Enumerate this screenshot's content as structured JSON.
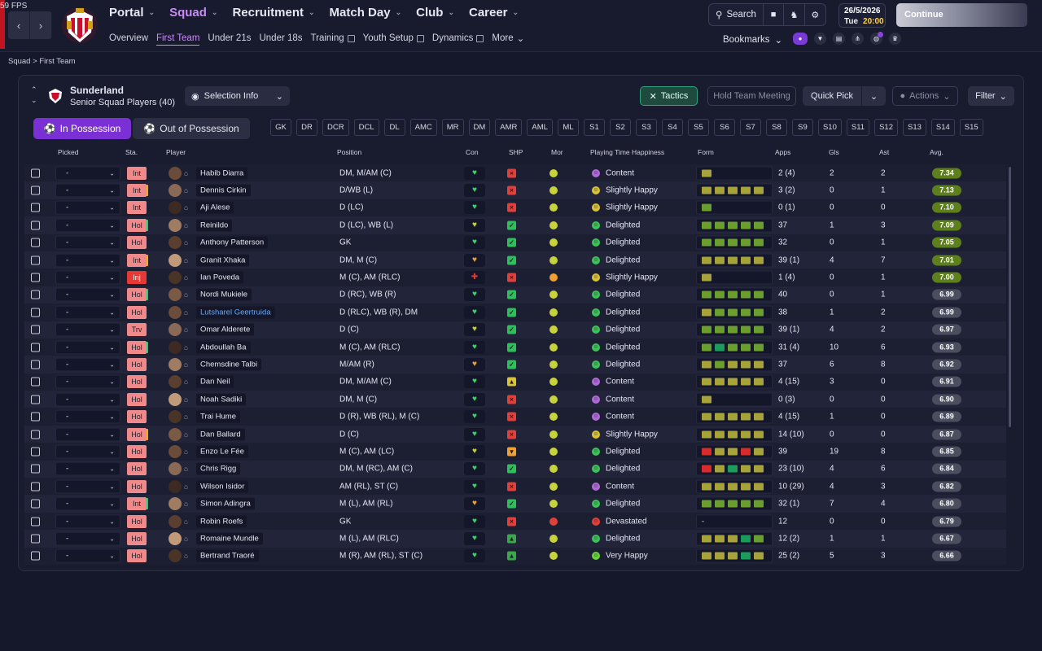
{
  "fps": "59 FPS",
  "nav": {
    "main": [
      {
        "label": "Portal",
        "active": false
      },
      {
        "label": "Squad",
        "active": true
      },
      {
        "label": "Recruitment",
        "active": false
      },
      {
        "label": "Match Day",
        "active": false
      },
      {
        "label": "Club",
        "active": false
      },
      {
        "label": "Career",
        "active": false
      }
    ],
    "sub": [
      {
        "label": "Overview",
        "active": false,
        "ext": false
      },
      {
        "label": "First Team",
        "active": true,
        "ext": false
      },
      {
        "label": "Under 21s",
        "active": false,
        "ext": false
      },
      {
        "label": "Under 18s",
        "active": false,
        "ext": false
      },
      {
        "label": "Training",
        "active": false,
        "ext": true
      },
      {
        "label": "Youth Setup",
        "active": false,
        "ext": true
      },
      {
        "label": "Dynamics",
        "active": false,
        "ext": true
      },
      {
        "label": "More",
        "active": false,
        "ext": false
      }
    ]
  },
  "tools": {
    "search": "Search"
  },
  "date": {
    "date": "26/5/2026",
    "day": "Tue",
    "time": "20:00"
  },
  "continue": "Continue",
  "bookmarks": "Bookmarks",
  "breadcrumb": {
    "parent": "Squad",
    "current": "First Team"
  },
  "team": {
    "name": "Sunderland",
    "subtitle": "Senior Squad Players (40)"
  },
  "buttons": {
    "selection_info": "Selection Info",
    "tactics": "Tactics",
    "hold_meeting": "Hold Team Meeting",
    "quick_pick": "Quick Pick",
    "actions": "Actions",
    "filter": "Filter",
    "in_possession": "In Possession",
    "out_possession": "Out of Possession"
  },
  "positions": [
    "GK",
    "DR",
    "DCR",
    "DCL",
    "DL",
    "AMC",
    "MR",
    "DM",
    "AMR",
    "AML",
    "ML",
    "S1",
    "S2",
    "S3",
    "S4",
    "S5",
    "S6",
    "S7",
    "S8",
    "S9",
    "S10",
    "S11",
    "S12",
    "S13",
    "S14",
    "S15"
  ],
  "columns": {
    "picked": "Picked",
    "sta": "Sta.",
    "player": "Player",
    "position": "Position",
    "con": "Con",
    "shp": "SHP",
    "mor": "Mor",
    "pth": "Playing Time Happiness",
    "form": "Form",
    "apps": "Apps",
    "gls": "Gls",
    "ast": "Ast",
    "avg": "Avg."
  },
  "colors": {
    "accent": "#7b30d6",
    "int": "#f08a8a",
    "inj": "#e53935",
    "hol": "#f08a8a",
    "trv": "#f08a8a"
  },
  "rows": [
    {
      "picked": "-",
      "sta": "Int",
      "bar": "",
      "name": "Habib Diarra",
      "pos": "DM, M/AM (C)",
      "con": "green",
      "shp": "red",
      "mor": "yellow",
      "pth": "Content",
      "form": [
        "y"
      ],
      "apps": "2 (4)",
      "gls": "2",
      "ast": "2",
      "avg": "7.34",
      "link": false
    },
    {
      "picked": "-",
      "sta": "Int",
      "bar": "orange",
      "name": "Dennis Cirkin",
      "pos": "D/WB (L)",
      "con": "green",
      "shp": "red",
      "mor": "yellow",
      "pth": "Slightly Happy",
      "form": [
        "y",
        "y",
        "y",
        "y",
        "y"
      ],
      "apps": "3 (2)",
      "gls": "0",
      "ast": "1",
      "avg": "7.13",
      "link": false
    },
    {
      "picked": "-",
      "sta": "Int",
      "bar": "",
      "name": "Aji Alese",
      "pos": "D (LC)",
      "con": "green",
      "shp": "red",
      "mor": "yellow",
      "pth": "Slightly Happy",
      "form": [
        "g"
      ],
      "apps": "0 (1)",
      "gls": "0",
      "ast": "0",
      "avg": "7.10",
      "link": false
    },
    {
      "picked": "-",
      "sta": "Hol",
      "bar": "green",
      "name": "Reinildo",
      "pos": "D (LC), WB (L)",
      "con": "yellowg",
      "shp": "green",
      "mor": "yellow",
      "pth": "Delighted",
      "form": [
        "g",
        "g",
        "g",
        "g",
        "g"
      ],
      "apps": "37",
      "gls": "1",
      "ast": "3",
      "avg": "7.09",
      "link": false
    },
    {
      "picked": "-",
      "sta": "Hol",
      "bar": "",
      "name": "Anthony Patterson",
      "pos": "GK",
      "con": "green",
      "shp": "green",
      "mor": "yellow",
      "pth": "Delighted",
      "form": [
        "g",
        "g",
        "g",
        "g",
        "g"
      ],
      "apps": "32",
      "gls": "0",
      "ast": "1",
      "avg": "7.05",
      "link": false
    },
    {
      "picked": "-",
      "sta": "Int",
      "bar": "orange",
      "name": "Granit Xhaka",
      "pos": "DM, M (C)",
      "con": "orangeh",
      "shp": "green",
      "mor": "yellow",
      "pth": "Delighted",
      "form": [
        "y",
        "y",
        "y",
        "y",
        "y"
      ],
      "apps": "39 (1)",
      "gls": "4",
      "ast": "7",
      "avg": "7.01",
      "link": false
    },
    {
      "picked": "-",
      "sta": "Inj",
      "bar": "",
      "name": "Ian Poveda",
      "pos": "M (C), AM (RLC)",
      "con": "redplus",
      "shp": "red",
      "mor": "orange",
      "pth": "Slightly Happy",
      "form": [
        "y"
      ],
      "apps": "1 (4)",
      "gls": "0",
      "ast": "1",
      "avg": "7.00",
      "link": false
    },
    {
      "picked": "-",
      "sta": "Hol",
      "bar": "green",
      "name": "Nordi Mukiele",
      "pos": "D (RC), WB (R)",
      "con": "green",
      "shp": "green",
      "mor": "yellow",
      "pth": "Delighted",
      "form": [
        "g",
        "g",
        "g",
        "g",
        "g"
      ],
      "apps": "40",
      "gls": "0",
      "ast": "1",
      "avg": "6.99",
      "link": false
    },
    {
      "picked": "-",
      "sta": "Hol",
      "bar": "",
      "name": "Lutsharel Geertruida",
      "pos": "D (RLC), WB (R), DM",
      "con": "green",
      "shp": "green",
      "mor": "yellow",
      "pth": "Delighted",
      "form": [
        "y",
        "g",
        "g",
        "g",
        "g"
      ],
      "apps": "38",
      "gls": "1",
      "ast": "2",
      "avg": "6.99",
      "link": true
    },
    {
      "picked": "-",
      "sta": "Trv",
      "bar": "",
      "name": "Omar Alderete",
      "pos": "D (C)",
      "con": "yellowg",
      "shp": "green",
      "mor": "yellow",
      "pth": "Delighted",
      "form": [
        "g",
        "g",
        "g",
        "g",
        "g"
      ],
      "apps": "39 (1)",
      "gls": "4",
      "ast": "2",
      "avg": "6.97",
      "link": false
    },
    {
      "picked": "-",
      "sta": "Hol",
      "bar": "green",
      "name": "Abdoullah Ba",
      "pos": "M (C), AM (RLC)",
      "con": "green",
      "shp": "green",
      "mor": "yellow",
      "pth": "Delighted",
      "form": [
        "g",
        "G",
        "g",
        "g",
        "g"
      ],
      "apps": "31 (4)",
      "gls": "10",
      "ast": "6",
      "avg": "6.93",
      "link": false
    },
    {
      "picked": "-",
      "sta": "Hol",
      "bar": "",
      "name": "Chemsdine Talbi",
      "pos": "M/AM (R)",
      "con": "orangeh",
      "shp": "green",
      "mor": "yellow",
      "pth": "Delighted",
      "form": [
        "y",
        "g",
        "y",
        "y",
        "y"
      ],
      "apps": "37",
      "gls": "6",
      "ast": "8",
      "avg": "6.92",
      "link": false
    },
    {
      "picked": "-",
      "sta": "Hol",
      "bar": "",
      "name": "Dan Neil",
      "pos": "DM, M/AM (C)",
      "con": "green",
      "shp": "yellowup",
      "mor": "yellow",
      "pth": "Content",
      "form": [
        "y",
        "y",
        "y",
        "y",
        "y"
      ],
      "apps": "4 (15)",
      "gls": "3",
      "ast": "0",
      "avg": "6.91",
      "link": false
    },
    {
      "picked": "-",
      "sta": "Hol",
      "bar": "",
      "name": "Noah Sadiki",
      "pos": "DM, M (C)",
      "con": "green",
      "shp": "red",
      "mor": "yellow",
      "pth": "Content",
      "form": [
        "y"
      ],
      "apps": "0 (3)",
      "gls": "0",
      "ast": "0",
      "avg": "6.90",
      "link": false
    },
    {
      "picked": "-",
      "sta": "Hol",
      "bar": "",
      "name": "Trai Hume",
      "pos": "D (R), WB (RL), M (C)",
      "con": "green",
      "shp": "red",
      "mor": "yellow",
      "pth": "Content",
      "form": [
        "y",
        "y",
        "y",
        "y",
        "y"
      ],
      "apps": "4 (15)",
      "gls": "1",
      "ast": "0",
      "avg": "6.89",
      "link": false
    },
    {
      "picked": "-",
      "sta": "Hol",
      "bar": "orange",
      "name": "Dan Ballard",
      "pos": "D (C)",
      "con": "green",
      "shp": "red",
      "mor": "yellow",
      "pth": "Slightly Happy",
      "form": [
        "y",
        "y",
        "y",
        "y",
        "y"
      ],
      "apps": "14 (10)",
      "gls": "0",
      "ast": "0",
      "avg": "6.87",
      "link": false
    },
    {
      "picked": "-",
      "sta": "Hol",
      "bar": "",
      "name": "Enzo Le Fée",
      "pos": "M (C), AM (LC)",
      "con": "yellowg",
      "shp": "orange",
      "mor": "yellow",
      "pth": "Delighted",
      "form": [
        "r",
        "y",
        "y",
        "r",
        "y"
      ],
      "apps": "39",
      "gls": "19",
      "ast": "8",
      "avg": "6.85",
      "link": false
    },
    {
      "picked": "-",
      "sta": "Hol",
      "bar": "",
      "name": "Chris Rigg",
      "pos": "DM, M (RC), AM (C)",
      "con": "green",
      "shp": "green",
      "mor": "yellow",
      "pth": "Delighted",
      "form": [
        "r",
        "y",
        "G",
        "y",
        "y"
      ],
      "apps": "23 (10)",
      "gls": "4",
      "ast": "6",
      "avg": "6.84",
      "link": false
    },
    {
      "picked": "-",
      "sta": "Hol",
      "bar": "",
      "name": "Wilson Isidor",
      "pos": "AM (RL), ST (C)",
      "con": "green",
      "shp": "red",
      "mor": "yellow",
      "pth": "Content",
      "form": [
        "y",
        "y",
        "y",
        "y",
        "y"
      ],
      "apps": "10 (29)",
      "gls": "4",
      "ast": "3",
      "avg": "6.82",
      "link": false
    },
    {
      "picked": "-",
      "sta": "Int",
      "bar": "green",
      "name": "Simon Adingra",
      "pos": "M (L), AM (RL)",
      "con": "orangeh",
      "shp": "green",
      "mor": "yellow",
      "pth": "Delighted",
      "form": [
        "g",
        "g",
        "g",
        "g",
        "g"
      ],
      "apps": "32 (1)",
      "gls": "7",
      "ast": "4",
      "avg": "6.80",
      "link": false
    },
    {
      "picked": "-",
      "sta": "Hol",
      "bar": "",
      "name": "Robin Roefs",
      "pos": "GK",
      "con": "green",
      "shp": "red",
      "mor": "red",
      "pth": "Devastated",
      "form": [
        "-"
      ],
      "apps": "12",
      "gls": "0",
      "ast": "0",
      "avg": "6.79",
      "link": false
    },
    {
      "picked": "-",
      "sta": "Hol",
      "bar": "",
      "name": "Romaine Mundle",
      "pos": "M (L), AM (RLC)",
      "con": "green",
      "shp": "greenup",
      "mor": "yellow",
      "pth": "Delighted",
      "form": [
        "y",
        "y",
        "y",
        "G",
        "g"
      ],
      "apps": "12 (2)",
      "gls": "1",
      "ast": "1",
      "avg": "6.67",
      "link": false
    },
    {
      "picked": "-",
      "sta": "Hol",
      "bar": "",
      "name": "Bertrand Traoré",
      "pos": "M (R), AM (RL), ST (C)",
      "con": "green",
      "shp": "greenup",
      "mor": "yellow",
      "pth": "Very Happy",
      "form": [
        "y",
        "y",
        "y",
        "G",
        "y"
      ],
      "apps": "25 (2)",
      "gls": "5",
      "ast": "3",
      "avg": "6.66",
      "link": false
    }
  ]
}
